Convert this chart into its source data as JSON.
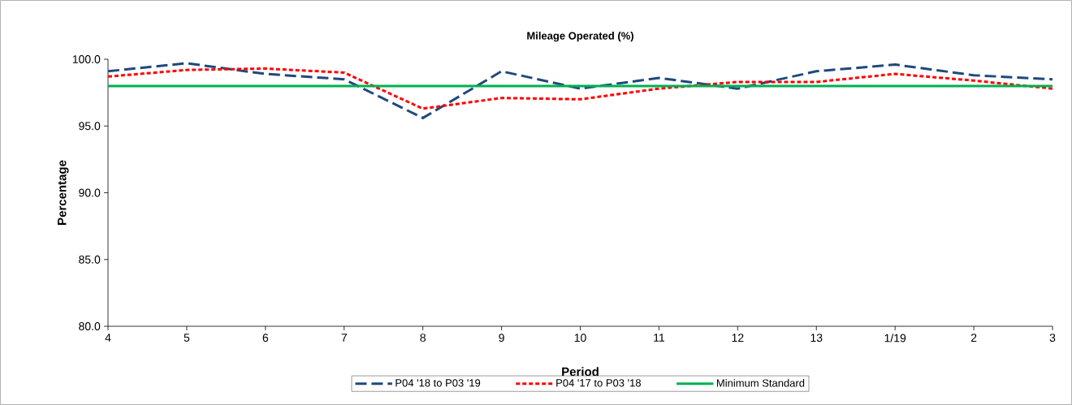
{
  "chart_data": {
    "type": "line",
    "title": "Mileage Operated (%)",
    "xlabel": "Period",
    "ylabel": "Percentage",
    "categories": [
      "4",
      "5",
      "6",
      "7",
      "8",
      "9",
      "10",
      "11",
      "12",
      "13",
      "1/19",
      "2",
      "3"
    ],
    "series": [
      {
        "name": "P04 '18 to P03 '19",
        "color": "#1f497d",
        "line_style": "dashed",
        "values": [
          99.1,
          99.7,
          98.9,
          98.5,
          95.6,
          99.1,
          97.8,
          98.6,
          97.8,
          99.1,
          99.6,
          98.8,
          98.5
        ]
      },
      {
        "name": "P04 '17 to P03 '18",
        "color": "#ff0000",
        "line_style": "dotted",
        "values": [
          98.7,
          99.2,
          99.3,
          99.0,
          96.3,
          97.1,
          97.0,
          97.8,
          98.3,
          98.3,
          98.9,
          98.4,
          97.8
        ]
      },
      {
        "name": "Minimum Standard",
        "color": "#00b050",
        "line_style": "solid",
        "values": [
          98.0,
          98.0,
          98.0,
          98.0,
          98.0,
          98.0,
          98.0,
          98.0,
          98.0,
          98.0,
          98.0,
          98.0,
          98.0
        ]
      }
    ],
    "ylim": [
      80,
      100
    ],
    "yticks": [
      {
        "value": 80,
        "label": "80.0"
      },
      {
        "value": 85,
        "label": "85.0"
      },
      {
        "value": 90,
        "label": "90.0"
      },
      {
        "value": 95,
        "label": "95.0"
      },
      {
        "value": 100,
        "label": "100.0"
      }
    ],
    "grid": false,
    "legend": "bottom"
  }
}
